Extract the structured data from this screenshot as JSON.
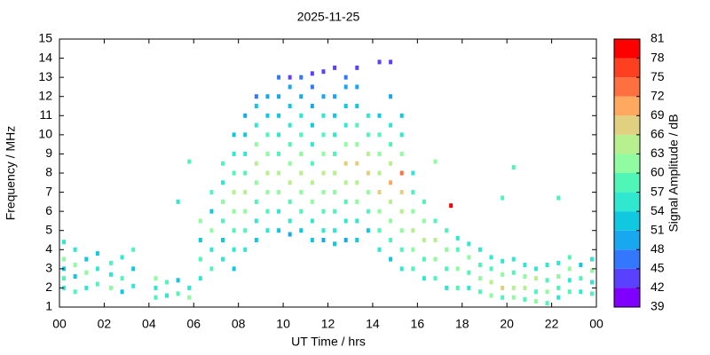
{
  "chart_data": {
    "type": "scatter",
    "title": "2025-11-25",
    "xlabel": "UT Time / hrs",
    "ylabel": "Frequency / MHz",
    "xlim": [
      0,
      24
    ],
    "xticks": [
      {
        "value": 0,
        "label": "00"
      },
      {
        "value": 2,
        "label": "02"
      },
      {
        "value": 4,
        "label": "04"
      },
      {
        "value": 6,
        "label": "06"
      },
      {
        "value": 8,
        "label": "08"
      },
      10,
      12,
      14,
      16,
      18,
      20,
      22,
      {
        "value": 24,
        "label": "00"
      }
    ],
    "ylim": [
      1,
      15
    ],
    "yticks": [
      1,
      2,
      3,
      4,
      5,
      6,
      7,
      8,
      9,
      10,
      11,
      12,
      13,
      14,
      15
    ],
    "colorbar": {
      "label": "Signal Amplitude / dB",
      "lim": [
        39,
        81
      ],
      "ticks": [
        39,
        42,
        45,
        48,
        51,
        54,
        57,
        60,
        63,
        66,
        69,
        72,
        75,
        78,
        81
      ],
      "colors": [
        "#7f00ff",
        "#5a40ff",
        "#3377ff",
        "#18a8f0",
        "#10c8e0",
        "#30e8d0",
        "#50f5b8",
        "#90fba0",
        "#b8f090",
        "#e0d080",
        "#ffa860",
        "#ff7040",
        "#ff4020",
        "#ff0000"
      ]
    },
    "x": [
      0.2,
      0.2,
      0.2,
      0.2,
      0.2,
      0.7,
      0.7,
      0.7,
      0.7,
      1.2,
      1.2,
      1.2,
      1.7,
      1.7,
      1.7,
      2.3,
      2.3,
      2.3,
      2.8,
      2.8,
      2.8,
      3.3,
      3.3,
      3.3,
      4.3,
      4.3,
      4.3,
      4.8,
      4.8,
      5.3,
      5.3,
      5.3,
      5.8,
      5.8,
      5.8,
      6.3,
      6.3,
      6.3,
      6.3,
      6.8,
      6.8,
      6.8,
      6.8,
      6.8,
      7.3,
      7.3,
      7.3,
      7.3,
      7.3,
      7.3,
      7.8,
      7.8,
      7.8,
      7.8,
      7.8,
      7.8,
      7.8,
      7.8,
      8.3,
      8.3,
      8.3,
      8.3,
      8.3,
      8.3,
      8.3,
      8.3,
      8.8,
      8.8,
      8.8,
      8.8,
      8.8,
      8.8,
      8.8,
      8.8,
      8.8,
      9.3,
      9.3,
      9.3,
      9.3,
      9.3,
      9.3,
      9.3,
      9.3,
      9.8,
      9.8,
      9.8,
      9.8,
      9.8,
      9.8,
      9.8,
      9.8,
      9.8,
      10.3,
      10.3,
      10.3,
      10.3,
      10.3,
      10.3,
      10.3,
      10.3,
      10.3,
      10.3,
      10.8,
      10.8,
      10.8,
      10.8,
      10.8,
      10.8,
      10.8,
      10.8,
      10.8,
      11.3,
      11.3,
      11.3,
      11.3,
      11.3,
      11.3,
      11.3,
      11.3,
      11.3,
      11.3,
      11.8,
      11.8,
      11.8,
      11.8,
      11.8,
      11.8,
      11.8,
      11.8,
      11.8,
      11.8,
      12.3,
      12.3,
      12.3,
      12.3,
      12.3,
      12.3,
      12.3,
      12.3,
      12.3,
      12.3,
      12.8,
      12.8,
      12.8,
      12.8,
      12.8,
      12.8,
      12.8,
      12.8,
      12.8,
      12.8,
      13.3,
      13.3,
      13.3,
      13.3,
      13.3,
      13.3,
      13.3,
      13.3,
      13.3,
      13.3,
      13.8,
      13.8,
      13.8,
      13.8,
      13.8,
      13.8,
      13.8,
      14.3,
      14.3,
      14.3,
      14.3,
      14.3,
      14.3,
      14.3,
      14.3,
      14.3,
      14.8,
      14.8,
      14.8,
      14.8,
      14.8,
      14.8,
      14.8,
      14.8,
      14.8,
      14.8,
      15.3,
      15.3,
      15.3,
      15.3,
      15.3,
      15.3,
      15.3,
      15.3,
      15.3,
      15.8,
      15.8,
      15.8,
      15.8,
      15.8,
      15.8,
      16.3,
      16.3,
      16.3,
      16.3,
      16.3,
      16.8,
      16.8,
      16.8,
      16.8,
      16.8,
      17.3,
      17.3,
      17.3,
      17.3,
      17.5,
      17.8,
      17.8,
      17.8,
      17.8,
      18.3,
      18.3,
      18.3,
      18.3,
      18.8,
      18.8,
      18.8,
      18.8,
      19.3,
      19.3,
      19.3,
      19.3,
      19.8,
      19.8,
      19.8,
      19.8,
      19.8,
      20.3,
      20.3,
      20.3,
      20.3,
      20.3,
      20.8,
      20.8,
      20.8,
      20.8,
      21.3,
      21.3,
      21.3,
      21.3,
      21.8,
      21.8,
      21.8,
      21.8,
      22.3,
      22.3,
      22.3,
      22.3,
      22.3,
      22.8,
      22.8,
      22.8,
      22.8,
      23.3,
      23.3,
      23.3,
      23.8,
      23.8,
      23.8,
      23.8
    ],
    "y": [
      2,
      2.5,
      3,
      3.5,
      4.4,
      1.8,
      2.6,
      3.2,
      4,
      2,
      2.8,
      3.5,
      2.2,
      3,
      3.8,
      2,
      2.7,
      3.3,
      1.8,
      2.5,
      3.6,
      2.1,
      3,
      4,
      1.5,
      2,
      2.5,
      1.6,
      2.3,
      1.7,
      2.4,
      6.5,
      1.5,
      2,
      8.6,
      2.5,
      3.5,
      4.5,
      5.5,
      3,
      4,
      5,
      6,
      7,
      3.5,
      4.5,
      5.5,
      6.5,
      7.5,
      8.5,
      3,
      4,
      5,
      6,
      7,
      8,
      9,
      10,
      4,
      5,
      6,
      7,
      8,
      9,
      10,
      11,
      4.5,
      5.5,
      6.5,
      7.5,
      8.5,
      9.5,
      10.5,
      11.5,
      12,
      5,
      6,
      7,
      8,
      9,
      10,
      11,
      12,
      5,
      6,
      7,
      8,
      9,
      10,
      11,
      12,
      13,
      4.8,
      5.5,
      6.5,
      7.5,
      8.5,
      9.5,
      10.5,
      11.5,
      12.5,
      13,
      5,
      6,
      7,
      8,
      9,
      10,
      11,
      12,
      13,
      4.5,
      5.5,
      6.5,
      7.5,
      8.5,
      9.5,
      10.5,
      11.5,
      12.5,
      13.2,
      4.5,
      5,
      6,
      7,
      8,
      9,
      10,
      11,
      12,
      13.3,
      4.3,
      5,
      6,
      7,
      8,
      9,
      10,
      11,
      12,
      13.5,
      4.5,
      5.5,
      6.5,
      7.5,
      8.5,
      9.5,
      10.5,
      11.5,
      12.5,
      13,
      4.5,
      5.5,
      6.5,
      7.5,
      8.5,
      9.5,
      10.5,
      11.5,
      12.5,
      13.5,
      5,
      6,
      7,
      8,
      9,
      10,
      11,
      4,
      5,
      6,
      7,
      8,
      9,
      10,
      11,
      13.8,
      3.5,
      4.5,
      5.5,
      6.5,
      7.5,
      8.5,
      9.5,
      10.5,
      12,
      13.8,
      3,
      4,
      5,
      6,
      7,
      8,
      9,
      10,
      11,
      3,
      4,
      5,
      6,
      7,
      8,
      2.5,
      3.5,
      4.5,
      5.5,
      6.5,
      2.5,
      3.5,
      4.5,
      5.5,
      8.6,
      2,
      3,
      4,
      5,
      6.3,
      2,
      3,
      4,
      4.6,
      2,
      2.8,
      3.6,
      4.3,
      1.8,
      2.5,
      3.2,
      4,
      1.6,
      2.3,
      3,
      3.6,
      1.5,
      2,
      2.7,
      3.4,
      6.7,
      1.5,
      2,
      2.8,
      3.5,
      8.3,
      1.4,
      2,
      2.6,
      3.2,
      1.3,
      1.8,
      2.5,
      3,
      1.2,
      1.8,
      2.4,
      3.2,
      1.5,
      2,
      2.6,
      3.3,
      6.7,
      1.8,
      2.4,
      3,
      3.6,
      1.8,
      2.5,
      3.2,
      1.7,
      2.3,
      2.9,
      3.5
    ],
    "values": [
      54,
      57,
      51,
      60,
      54,
      57,
      51,
      60,
      54,
      54,
      60,
      51,
      57,
      54,
      51,
      60,
      54,
      57,
      51,
      57,
      54,
      54,
      51,
      57,
      57,
      54,
      60,
      54,
      57,
      57,
      51,
      54,
      60,
      54,
      57,
      54,
      57,
      51,
      60,
      57,
      54,
      60,
      51,
      57,
      54,
      51,
      57,
      60,
      54,
      57,
      51,
      54,
      57,
      60,
      63,
      57,
      54,
      51,
      54,
      57,
      60,
      63,
      57,
      54,
      51,
      48,
      51,
      54,
      57,
      60,
      63,
      60,
      54,
      51,
      45,
      54,
      57,
      60,
      63,
      60,
      57,
      51,
      48,
      51,
      54,
      60,
      63,
      57,
      54,
      51,
      48,
      45,
      48,
      54,
      57,
      63,
      60,
      57,
      54,
      51,
      48,
      42,
      51,
      57,
      60,
      63,
      60,
      57,
      54,
      48,
      45,
      51,
      54,
      60,
      63,
      57,
      54,
      51,
      48,
      45,
      42,
      48,
      54,
      57,
      60,
      63,
      60,
      57,
      54,
      48,
      42,
      51,
      54,
      57,
      60,
      63,
      57,
      54,
      51,
      48,
      42,
      48,
      54,
      57,
      63,
      66,
      60,
      54,
      51,
      48,
      45,
      51,
      54,
      60,
      63,
      66,
      60,
      57,
      51,
      48,
      42,
      51,
      57,
      60,
      66,
      63,
      57,
      54,
      54,
      57,
      60,
      66,
      63,
      60,
      57,
      51,
      42,
      51,
      57,
      60,
      63,
      69,
      63,
      57,
      54,
      48,
      42,
      54,
      57,
      60,
      63,
      66,
      72,
      60,
      54,
      51,
      57,
      60,
      63,
      60,
      57,
      54,
      54,
      57,
      63,
      60,
      57,
      57,
      60,
      63,
      57,
      60,
      54,
      57,
      60,
      57,
      78,
      57,
      60,
      57,
      54,
      54,
      57,
      60,
      54,
      57,
      60,
      57,
      54,
      60,
      63,
      57,
      54,
      57,
      66,
      60,
      54,
      57,
      60,
      63,
      57,
      54,
      57,
      57,
      63,
      60,
      54,
      60,
      57,
      63,
      54,
      57,
      60,
      57,
      54,
      54,
      57,
      60,
      54,
      57,
      57,
      54,
      60,
      57,
      54,
      57,
      51,
      57,
      54,
      60,
      54
    ]
  }
}
